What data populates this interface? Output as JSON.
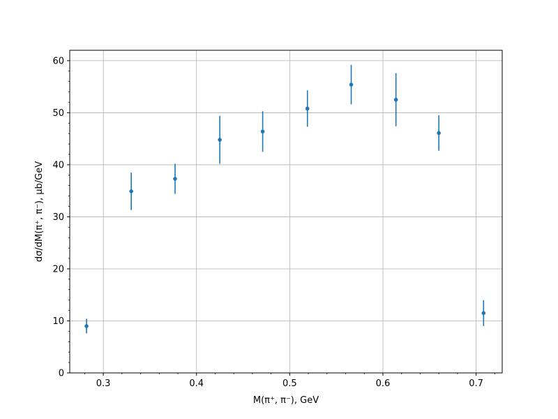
{
  "chart_data": {
    "type": "scatter",
    "title": "",
    "xlabel": "M(π⁺, π⁻), GeV",
    "ylabel": "dσ/dM(π⁺, π⁻), μb/GeV",
    "xlim": [
      0.264,
      0.728
    ],
    "ylim": [
      0,
      62
    ],
    "xticks": [
      0.3,
      0.4,
      0.5,
      0.6,
      0.7
    ],
    "xtick_labels": [
      "0.3",
      "0.4",
      "0.5",
      "0.6",
      "0.7"
    ],
    "yticks": [
      0,
      10,
      20,
      30,
      40,
      50,
      60
    ],
    "ytick_labels": [
      "0",
      "10",
      "20",
      "30",
      "40",
      "50",
      "60"
    ],
    "grid": true,
    "colors": {
      "series": "#1f77b4",
      "grid": "#b0b0b0",
      "axes": "#000000"
    },
    "series": [
      {
        "x": [
          0.282,
          0.33,
          0.377,
          0.425,
          0.471,
          0.519,
          0.566,
          0.614,
          0.66,
          0.708
        ],
        "y": [
          9.0,
          34.9,
          37.3,
          44.8,
          46.4,
          50.8,
          55.4,
          52.5,
          46.1,
          11.5
        ],
        "err": [
          1.4,
          3.6,
          2.9,
          4.6,
          3.9,
          3.5,
          3.8,
          5.1,
          3.4,
          2.5
        ]
      }
    ]
  }
}
